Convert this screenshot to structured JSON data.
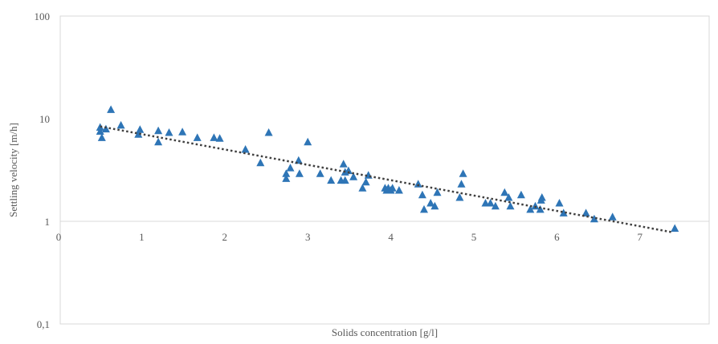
{
  "chart_data": {
    "type": "scatter",
    "title": "",
    "xlabel": "Solids concentration [g/l]",
    "ylabel": "Settling velocity [m/h]",
    "y_scale": "log",
    "ylim": [
      0.1,
      100
    ],
    "xlim": [
      0,
      7.9
    ],
    "x_ticks": [
      "0",
      "1",
      "2",
      "3",
      "4",
      "5",
      "6",
      "7"
    ],
    "y_ticks": [
      "0,1",
      "1",
      "10",
      "100"
    ],
    "grid": false,
    "legend": "none",
    "marker_color": "#2E75B6",
    "trendline_color": "#404040",
    "trendline": {
      "type": "exponential",
      "style": "dotted",
      "x_range": [
        0.5,
        7.4
      ],
      "y_at_start": 8.4,
      "y_at_end": 0.78
    },
    "series": [
      {
        "marker": "triangle",
        "points": [
          [
            0.5,
            8.2
          ],
          [
            0.5,
            7.5
          ],
          [
            0.52,
            6.5
          ],
          [
            0.57,
            7.9
          ],
          [
            0.63,
            12.2
          ],
          [
            0.75,
            8.6
          ],
          [
            0.96,
            7.0
          ],
          [
            0.98,
            7.8
          ],
          [
            1.2,
            7.6
          ],
          [
            1.2,
            5.9
          ],
          [
            1.33,
            7.3
          ],
          [
            1.49,
            7.4
          ],
          [
            1.67,
            6.5
          ],
          [
            1.87,
            6.5
          ],
          [
            1.94,
            6.4
          ],
          [
            2.25,
            5.0
          ],
          [
            2.43,
            3.7
          ],
          [
            2.53,
            7.3
          ],
          [
            2.74,
            2.6
          ],
          [
            2.74,
            2.9
          ],
          [
            2.79,
            3.3
          ],
          [
            2.89,
            3.9
          ],
          [
            2.9,
            2.9
          ],
          [
            3.0,
            5.9
          ],
          [
            3.15,
            2.9
          ],
          [
            3.28,
            2.5
          ],
          [
            3.4,
            2.5
          ],
          [
            3.43,
            3.6
          ],
          [
            3.45,
            2.5
          ],
          [
            3.45,
            3.0
          ],
          [
            3.49,
            3.1
          ],
          [
            3.55,
            2.7
          ],
          [
            3.66,
            2.1
          ],
          [
            3.7,
            2.4
          ],
          [
            3.73,
            2.8
          ],
          [
            3.93,
            2.1
          ],
          [
            3.95,
            2.0
          ],
          [
            3.97,
            2.1
          ],
          [
            4.0,
            2.0
          ],
          [
            4.02,
            2.1
          ],
          [
            4.1,
            2.0
          ],
          [
            4.33,
            2.3
          ],
          [
            4.38,
            1.8
          ],
          [
            4.4,
            1.3
          ],
          [
            4.48,
            1.5
          ],
          [
            4.53,
            1.4
          ],
          [
            4.56,
            1.9
          ],
          [
            4.83,
            1.7
          ],
          [
            4.85,
            2.3
          ],
          [
            4.87,
            2.9
          ],
          [
            5.14,
            1.5
          ],
          [
            5.2,
            1.5
          ],
          [
            5.26,
            1.4
          ],
          [
            5.37,
            1.9
          ],
          [
            5.42,
            1.7
          ],
          [
            5.44,
            1.4
          ],
          [
            5.57,
            1.8
          ],
          [
            5.68,
            1.3
          ],
          [
            5.74,
            1.4
          ],
          [
            5.8,
            1.3
          ],
          [
            5.81,
            1.6
          ],
          [
            5.82,
            1.7
          ],
          [
            6.03,
            1.5
          ],
          [
            6.08,
            1.2
          ],
          [
            6.35,
            1.2
          ],
          [
            6.45,
            1.05
          ],
          [
            6.67,
            1.1
          ],
          [
            7.42,
            0.85
          ]
        ]
      }
    ]
  }
}
